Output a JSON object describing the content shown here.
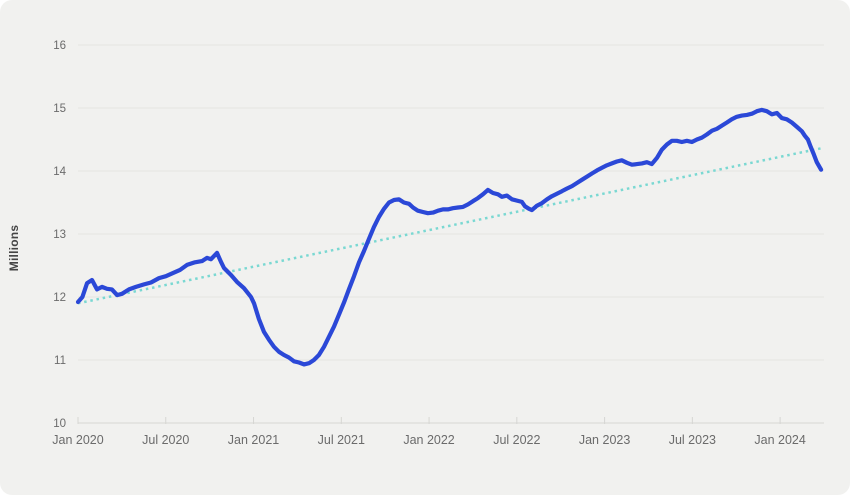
{
  "colors": {
    "page_bg": "#ffffff",
    "card_bg": "#f1f1ef",
    "grid": "#e5e5e2",
    "axis": "#d6d6d3",
    "tick_text": "#6b6b6b",
    "axis_title_text": "#454545",
    "line": "#2b48d7",
    "trend": "#7ad8d2"
  },
  "chart_data": {
    "type": "line",
    "title": "",
    "xlabel": "",
    "ylabel": "Millions",
    "x_unit": "months since Jan 2020",
    "xlim": [
      0,
      51
    ],
    "ylim": [
      10,
      16
    ],
    "grid": "horizontal",
    "legend": "none",
    "y_ticks": [
      10,
      11,
      12,
      13,
      14,
      15,
      16
    ],
    "x_ticks": [
      {
        "month": 0,
        "label": "Jan 2020"
      },
      {
        "month": 6,
        "label": "Jul 2020"
      },
      {
        "month": 12,
        "label": "Jan 2021"
      },
      {
        "month": 18,
        "label": "Jul 2021"
      },
      {
        "month": 24,
        "label": "Jan 2022"
      },
      {
        "month": 30,
        "label": "Jul 2022"
      },
      {
        "month": 36,
        "label": "Jan 2023"
      },
      {
        "month": 42,
        "label": "Jul 2023"
      },
      {
        "month": 48,
        "label": "Jan 2024"
      }
    ],
    "series": [
      {
        "name": "trend",
        "style": "dotted",
        "color": "#7ad8d2",
        "width": 2.5,
        "points": [
          [
            0,
            11.9
          ],
          [
            51,
            14.37
          ]
        ]
      },
      {
        "name": "value-millions",
        "style": "solid",
        "color": "#2b48d7",
        "width": 4.2,
        "points": [
          [
            0,
            11.92
          ],
          [
            0.3,
            12.0
          ],
          [
            0.62,
            12.22
          ],
          [
            0.96,
            12.27
          ],
          [
            1.3,
            12.12
          ],
          [
            1.64,
            12.16
          ],
          [
            1.98,
            12.13
          ],
          [
            2.32,
            12.12
          ],
          [
            2.67,
            12.03
          ],
          [
            3.01,
            12.05
          ],
          [
            3.49,
            12.12
          ],
          [
            3.96,
            12.16
          ],
          [
            4.51,
            12.2
          ],
          [
            4.99,
            12.23
          ],
          [
            5.54,
            12.3
          ],
          [
            6.01,
            12.33
          ],
          [
            6.49,
            12.38
          ],
          [
            6.97,
            12.43
          ],
          [
            7.45,
            12.51
          ],
          [
            8,
            12.55
          ],
          [
            8.48,
            12.57
          ],
          [
            8.82,
            12.62
          ],
          [
            9.09,
            12.6
          ],
          [
            9.5,
            12.7
          ],
          [
            9.77,
            12.56
          ],
          [
            9.98,
            12.46
          ],
          [
            10.46,
            12.35
          ],
          [
            10.87,
            12.24
          ],
          [
            11.35,
            12.14
          ],
          [
            11.83,
            12.0
          ],
          [
            12.03,
            11.9
          ],
          [
            12.37,
            11.65
          ],
          [
            12.71,
            11.45
          ],
          [
            13.06,
            11.32
          ],
          [
            13.4,
            11.21
          ],
          [
            13.74,
            11.13
          ],
          [
            14.08,
            11.08
          ],
          [
            14.42,
            11.04
          ],
          [
            14.77,
            10.98
          ],
          [
            15.11,
            10.96
          ],
          [
            15.45,
            10.93
          ],
          [
            15.79,
            10.95
          ],
          [
            16.13,
            11.0
          ],
          [
            16.47,
            11.08
          ],
          [
            16.82,
            11.21
          ],
          [
            17.16,
            11.37
          ],
          [
            17.5,
            11.53
          ],
          [
            17.84,
            11.72
          ],
          [
            18.18,
            11.91
          ],
          [
            18.52,
            12.12
          ],
          [
            18.87,
            12.33
          ],
          [
            19.21,
            12.55
          ],
          [
            19.55,
            12.73
          ],
          [
            19.89,
            12.92
          ],
          [
            20.23,
            13.11
          ],
          [
            20.57,
            13.27
          ],
          [
            20.92,
            13.4
          ],
          [
            21.26,
            13.5
          ],
          [
            21.6,
            13.54
          ],
          [
            21.94,
            13.55
          ],
          [
            22.28,
            13.5
          ],
          [
            22.63,
            13.48
          ],
          [
            22.9,
            13.42
          ],
          [
            23.24,
            13.37
          ],
          [
            23.58,
            13.35
          ],
          [
            23.92,
            13.33
          ],
          [
            24.27,
            13.34
          ],
          [
            24.61,
            13.37
          ],
          [
            24.95,
            13.39
          ],
          [
            25.29,
            13.39
          ],
          [
            25.63,
            13.41
          ],
          [
            25.98,
            13.42
          ],
          [
            26.32,
            13.43
          ],
          [
            26.66,
            13.47
          ],
          [
            27,
            13.52
          ],
          [
            27.34,
            13.57
          ],
          [
            27.68,
            13.63
          ],
          [
            28.02,
            13.7
          ],
          [
            28.37,
            13.65
          ],
          [
            28.71,
            13.63
          ],
          [
            28.98,
            13.59
          ],
          [
            29.32,
            13.61
          ],
          [
            29.67,
            13.55
          ],
          [
            30.01,
            13.53
          ],
          [
            30.35,
            13.51
          ],
          [
            30.56,
            13.44
          ],
          [
            30.83,
            13.4
          ],
          [
            31.03,
            13.38
          ],
          [
            31.37,
            13.45
          ],
          [
            31.72,
            13.49
          ],
          [
            32.06,
            13.55
          ],
          [
            32.4,
            13.6
          ],
          [
            32.74,
            13.64
          ],
          [
            33.08,
            13.68
          ],
          [
            33.42,
            13.72
          ],
          [
            33.77,
            13.76
          ],
          [
            34.11,
            13.81
          ],
          [
            34.45,
            13.86
          ],
          [
            34.79,
            13.91
          ],
          [
            35.13,
            13.96
          ],
          [
            35.48,
            14.01
          ],
          [
            35.82,
            14.05
          ],
          [
            36.16,
            14.09
          ],
          [
            36.5,
            14.12
          ],
          [
            36.84,
            14.15
          ],
          [
            37.18,
            14.17
          ],
          [
            37.53,
            14.13
          ],
          [
            37.87,
            14.1
          ],
          [
            38.21,
            14.11
          ],
          [
            38.55,
            14.12
          ],
          [
            38.89,
            14.14
          ],
          [
            39.23,
            14.11
          ],
          [
            39.58,
            14.21
          ],
          [
            39.92,
            14.34
          ],
          [
            40.26,
            14.42
          ],
          [
            40.6,
            14.48
          ],
          [
            40.94,
            14.48
          ],
          [
            41.28,
            14.46
          ],
          [
            41.63,
            14.48
          ],
          [
            41.97,
            14.46
          ],
          [
            42.31,
            14.5
          ],
          [
            42.65,
            14.53
          ],
          [
            42.99,
            14.58
          ],
          [
            43.34,
            14.64
          ],
          [
            43.68,
            14.67
          ],
          [
            44.02,
            14.72
          ],
          [
            44.36,
            14.77
          ],
          [
            44.7,
            14.82
          ],
          [
            45.04,
            14.86
          ],
          [
            45.39,
            14.88
          ],
          [
            45.73,
            14.89
          ],
          [
            46.07,
            14.91
          ],
          [
            46.41,
            14.95
          ],
          [
            46.75,
            14.97
          ],
          [
            47.09,
            14.95
          ],
          [
            47.44,
            14.9
          ],
          [
            47.78,
            14.92
          ],
          [
            48.12,
            14.84
          ],
          [
            48.46,
            14.82
          ],
          [
            48.8,
            14.77
          ],
          [
            49.15,
            14.7
          ],
          [
            49.49,
            14.63
          ],
          [
            49.69,
            14.56
          ],
          [
            49.9,
            14.5
          ],
          [
            50.1,
            14.38
          ],
          [
            50.31,
            14.26
          ],
          [
            50.51,
            14.14
          ],
          [
            50.8,
            14.02
          ]
        ]
      }
    ]
  }
}
